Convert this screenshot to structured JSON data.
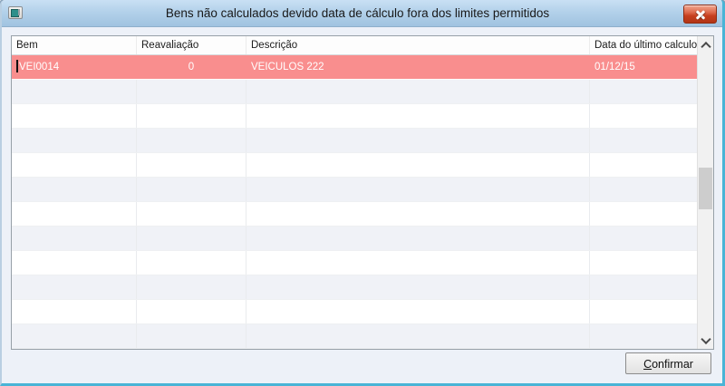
{
  "window": {
    "title": "Bens não calculados devido data de cálculo fora dos limites permitidos"
  },
  "icons": {
    "app": "app-window-icon",
    "close": "close-icon",
    "scroll_up": "chevron-up-icon",
    "scroll_down": "chevron-down-icon"
  },
  "table": {
    "columns": [
      {
        "label": "Bem"
      },
      {
        "label": "Reavaliação"
      },
      {
        "label": "Descrição"
      },
      {
        "label": "Data do último calculo"
      }
    ],
    "rows": [
      {
        "cells": [
          "VEI0014",
          "0",
          "VEICULOS 222",
          "01/12/15"
        ],
        "highlighted": true
      }
    ],
    "empty_row_count": 11
  },
  "footer": {
    "confirm_accel": "C",
    "confirm_label_rest": "onfirmar"
  },
  "colors": {
    "highlight_row": "#f98e8e",
    "titlebar_top": "#c9e0f4",
    "titlebar_bottom": "#a0c3e0",
    "window_border": "#49b4d6",
    "close_button": "#c6401f"
  }
}
